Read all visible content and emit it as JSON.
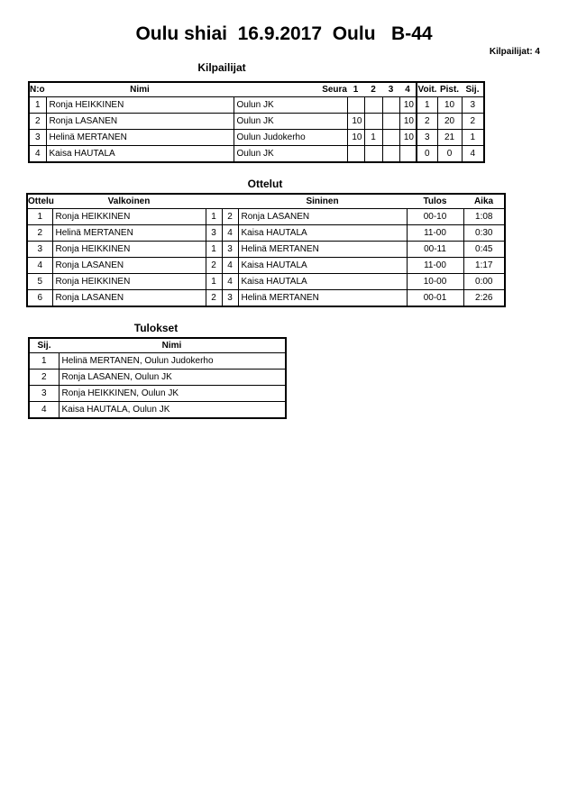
{
  "title": "Oulu shiai  16.9.2017  Oulu   B-44",
  "competitor_count": "Kilpailijat: 4",
  "competitors": {
    "heading": "Kilpailijat",
    "headers": [
      "N:o",
      "Nimi",
      "Seura",
      "1",
      "2",
      "3",
      "4",
      "Voit.",
      "Pist.",
      "Sij."
    ],
    "rows": [
      [
        "1",
        "Ronja HEIKKINEN",
        "Oulun JK",
        "",
        "",
        "",
        "10",
        "1",
        "10",
        "3"
      ],
      [
        "2",
        "Ronja LASANEN",
        "Oulun JK",
        "10",
        "",
        "",
        "10",
        "2",
        "20",
        "2"
      ],
      [
        "3",
        "Helinä MERTANEN",
        "Oulun Judokerho",
        "10",
        "1",
        "",
        "10",
        "3",
        "21",
        "1"
      ],
      [
        "4",
        "Kaisa HAUTALA",
        "Oulun JK",
        "",
        "",
        "",
        "",
        "0",
        "0",
        "4"
      ]
    ]
  },
  "matches": {
    "heading": "Ottelut",
    "headers": [
      "Ottelu",
      "Valkoinen",
      "",
      "",
      "Sininen",
      "Tulos",
      "Aika"
    ],
    "rows": [
      [
        "1",
        "Ronja HEIKKINEN",
        "1",
        "2",
        "Ronja LASANEN",
        "00-10",
        "1:08"
      ],
      [
        "2",
        "Helinä MERTANEN",
        "3",
        "4",
        "Kaisa HAUTALA",
        "11-00",
        "0:30"
      ],
      [
        "3",
        "Ronja HEIKKINEN",
        "1",
        "3",
        "Helinä MERTANEN",
        "00-11",
        "0:45"
      ],
      [
        "4",
        "Ronja LASANEN",
        "2",
        "4",
        "Kaisa HAUTALA",
        "11-00",
        "1:17"
      ],
      [
        "5",
        "Ronja HEIKKINEN",
        "1",
        "4",
        "Kaisa HAUTALA",
        "10-00",
        "0:00"
      ],
      [
        "6",
        "Ronja LASANEN",
        "2",
        "3",
        "Helinä MERTANEN",
        "00-01",
        "2:26"
      ]
    ]
  },
  "results": {
    "heading": "Tulokset",
    "headers": [
      "Sij.",
      "Nimi"
    ],
    "rows": [
      [
        "1",
        "Helinä MERTANEN, Oulun Judokerho"
      ],
      [
        "2",
        "Ronja LASANEN, Oulun JK"
      ],
      [
        "3",
        "Ronja HEIKKINEN, Oulun JK"
      ],
      [
        "4",
        "Kaisa HAUTALA, Oulun JK"
      ]
    ]
  }
}
